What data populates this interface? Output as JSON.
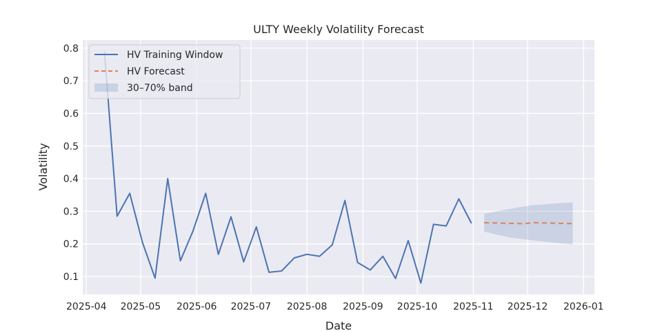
{
  "chart_data": {
    "type": "line",
    "title": "ULTY Weekly Volatility Forecast",
    "xlabel": "Date",
    "ylabel": "Volatility",
    "xlim": [
      "2025-03-30",
      "2026-01-07"
    ],
    "ylim": [
      0.045,
      0.825
    ],
    "grid": true,
    "legend_position": "top-left",
    "x_ticks": [
      "2025-04",
      "2025-05",
      "2025-06",
      "2025-07",
      "2025-08",
      "2025-09",
      "2025-10",
      "2025-11",
      "2025-12",
      "2026-01"
    ],
    "y_ticks": [
      0.1,
      0.2,
      0.3,
      0.4,
      0.5,
      0.6,
      0.7,
      0.8
    ],
    "series": [
      {
        "name": "HV Training Window",
        "color": "#4c72b0",
        "style": "solid",
        "x": [
          "2025-04-11",
          "2025-04-18",
          "2025-04-25",
          "2025-05-02",
          "2025-05-09",
          "2025-05-16",
          "2025-05-23",
          "2025-05-30",
          "2025-06-06",
          "2025-06-13",
          "2025-06-20",
          "2025-06-27",
          "2025-07-04",
          "2025-07-11",
          "2025-07-18",
          "2025-07-25",
          "2025-08-01",
          "2025-08-08",
          "2025-08-15",
          "2025-08-22",
          "2025-08-29",
          "2025-09-05",
          "2025-09-12",
          "2025-09-19",
          "2025-09-26",
          "2025-10-03",
          "2025-10-10",
          "2025-10-17",
          "2025-10-24",
          "2025-10-31"
        ],
        "values": [
          0.79,
          0.285,
          0.355,
          0.205,
          0.095,
          0.4,
          0.148,
          0.24,
          0.355,
          0.168,
          0.283,
          0.145,
          0.252,
          0.113,
          0.117,
          0.157,
          0.168,
          0.162,
          0.197,
          0.333,
          0.143,
          0.12,
          0.162,
          0.094,
          0.21,
          0.08,
          0.26,
          0.255,
          0.338,
          0.263
        ]
      },
      {
        "name": "HV Forecast",
        "color": "#dd8452",
        "style": "dashed",
        "x": [
          "2025-11-07",
          "2025-11-14",
          "2025-11-21",
          "2025-11-28",
          "2025-12-05",
          "2025-12-12",
          "2025-12-19",
          "2025-12-26"
        ],
        "values": [
          0.265,
          0.264,
          0.263,
          0.262,
          0.265,
          0.264,
          0.263,
          0.262
        ]
      }
    ],
    "band": {
      "name": "30–70% band",
      "color": "#4c72b0",
      "x": [
        "2025-11-07",
        "2025-11-14",
        "2025-11-21",
        "2025-11-28",
        "2025-12-05",
        "2025-12-12",
        "2025-12-19",
        "2025-12-26"
      ],
      "lower": [
        0.238,
        0.228,
        0.22,
        0.215,
        0.21,
        0.206,
        0.202,
        0.198
      ],
      "upper": [
        0.292,
        0.3,
        0.307,
        0.314,
        0.319,
        0.322,
        0.325,
        0.327
      ]
    }
  }
}
